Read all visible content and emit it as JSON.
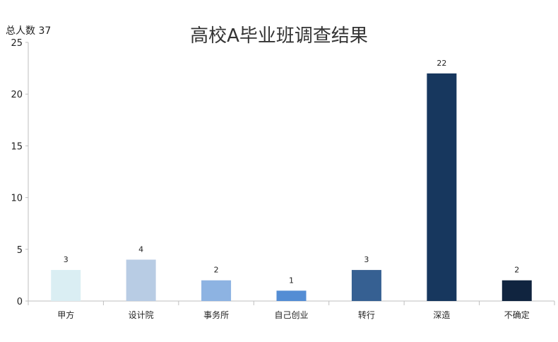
{
  "header": {
    "total_note": "总人数 37"
  },
  "chart_data": {
    "type": "bar",
    "title": "高校A毕业班调查结果",
    "xlabel": "",
    "ylabel": "",
    "categories": [
      "甲方",
      "设计院",
      "事务所",
      "自己创业",
      "转行",
      "深造",
      "不确定"
    ],
    "values": [
      3,
      4,
      2,
      1,
      3,
      22,
      2
    ],
    "ylim": [
      0,
      25
    ],
    "yticks": [
      0,
      5,
      10,
      15,
      20,
      25
    ],
    "grid": false,
    "legend": "none",
    "bar_colors": [
      "#daeef3",
      "#b8cce4",
      "#8db3e2",
      "#548dd4",
      "#366092",
      "#17375e",
      "#10243f"
    ],
    "axis_color": "#bfbfbf"
  }
}
